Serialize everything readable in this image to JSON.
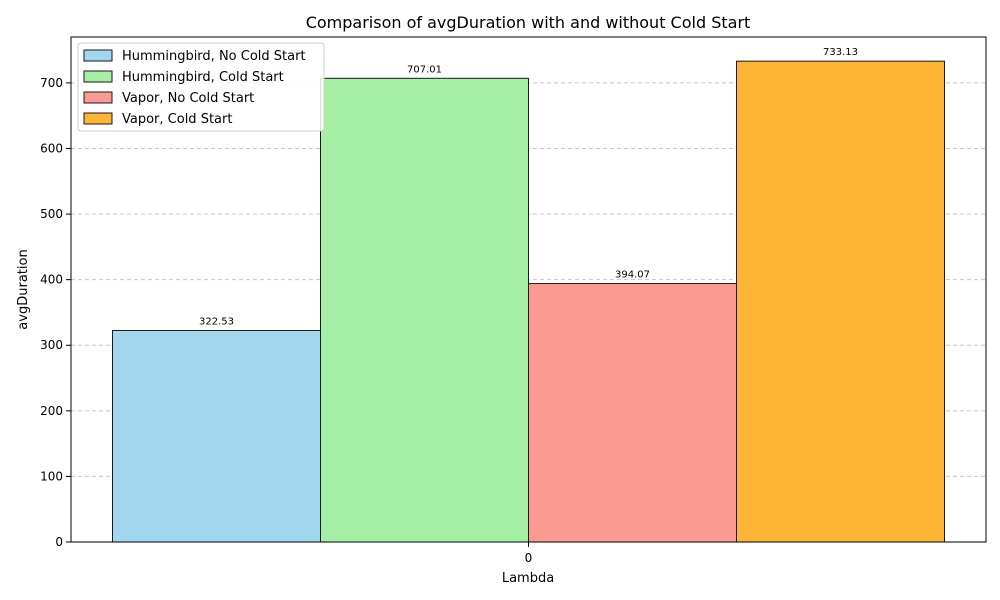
{
  "chart_data": {
    "type": "bar",
    "title": "Comparison of avgDuration with and without Cold Start",
    "xlabel": "Lambda",
    "ylabel": "avgDuration",
    "categories": [
      "0"
    ],
    "ylim": [
      0,
      770
    ],
    "yticks": [
      0,
      100,
      200,
      300,
      400,
      500,
      600,
      700
    ],
    "grid": "y-dashed",
    "legend_position": "top-left",
    "series": [
      {
        "name": "Hummingbird, No Cold Start",
        "values": [
          322.53
        ],
        "labels": [
          "322.53"
        ],
        "color": "#a0d6ee"
      },
      {
        "name": "Hummingbird, Cold Start",
        "values": [
          707.01
        ],
        "labels": [
          "707.01"
        ],
        "color": "#a6f0a6"
      },
      {
        "name": "Vapor, No Cold Start",
        "values": [
          394.07
        ],
        "labels": [
          "394.07"
        ],
        "color": "#fb9a90"
      },
      {
        "name": "Vapor, Cold Start",
        "values": [
          733.13
        ],
        "labels": [
          "733.13"
        ],
        "color": "#feb536"
      }
    ]
  }
}
